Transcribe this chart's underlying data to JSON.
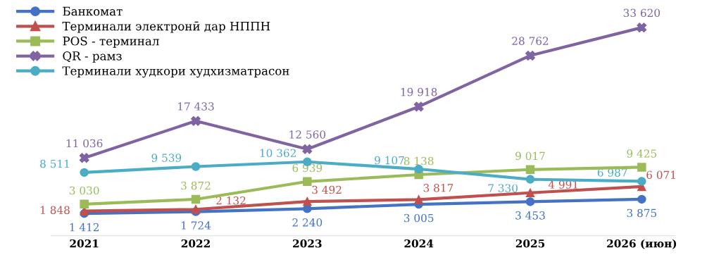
{
  "chart_data": {
    "type": "line",
    "categories": [
      "2021",
      "2022",
      "2023",
      "2024",
      "2025",
      "2026 (июн)"
    ],
    "series": [
      {
        "name": "Банкомат",
        "color": "#4472c4",
        "marker": "circle",
        "values": [
          1412,
          1724,
          2240,
          3005,
          3453,
          3875
        ],
        "value_labels": [
          "1 412",
          "1 724",
          "2 240",
          "3 005",
          "3 453",
          "3 875"
        ]
      },
      {
        "name": "Терминали электронӣ дар НППН",
        "color": "#c0504d",
        "marker": "triangle",
        "values": [
          1848,
          2132,
          3492,
          3817,
          4991,
          6071
        ],
        "value_labels": [
          "1 848",
          "2 132",
          "3 492",
          "3 817",
          "4 991",
          "6 071"
        ]
      },
      {
        "name": "POS - терминал",
        "color": "#9bbb59",
        "marker": "square",
        "values": [
          3030,
          3872,
          6939,
          8138,
          9017,
          9425
        ],
        "value_labels": [
          "3 030",
          "3 872",
          "6 939",
          "8 138",
          "9 017",
          "9 425"
        ]
      },
      {
        "name": "QR - рамз",
        "color": "#8064a2",
        "marker": "cross",
        "values": [
          11036,
          17433,
          12560,
          19918,
          28762,
          33620
        ],
        "value_labels": [
          "11 036",
          "17 433",
          "12 560",
          "19 918",
          "28 762",
          "33 620"
        ]
      },
      {
        "name": "Терминали худкори худхизматрасон",
        "color": "#4bacc6",
        "marker": "circle",
        "values": [
          8511,
          9539,
          10362,
          9107,
          7330,
          6987
        ],
        "value_labels": [
          "8 511",
          "9 539",
          "10 362",
          "9 107",
          "7 330",
          "6 987"
        ]
      }
    ],
    "legend": "top left"
  }
}
